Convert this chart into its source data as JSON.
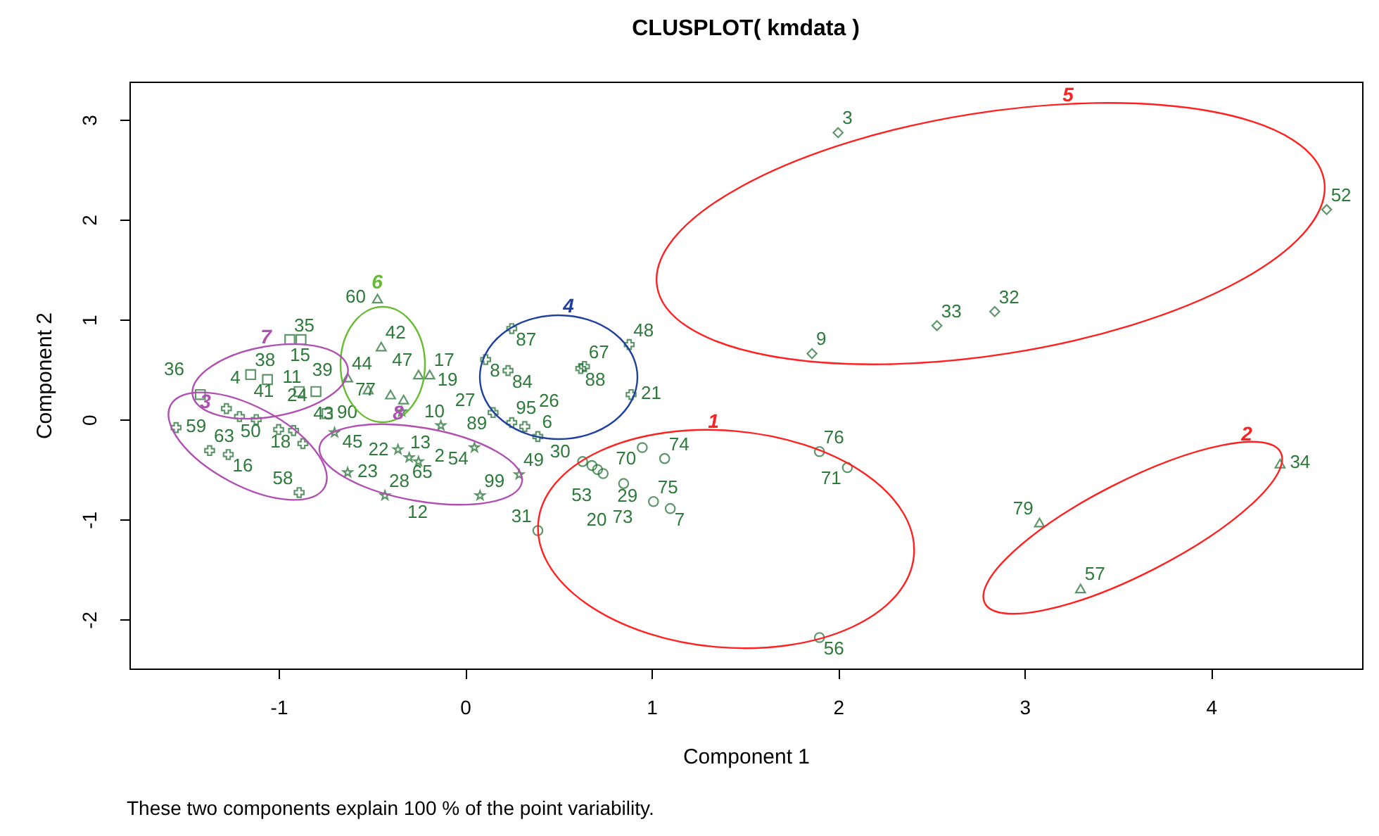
{
  "chart_data": {
    "type": "scatter",
    "title": "CLUSPLOT( kmdata )",
    "xlabel": "Component 1",
    "ylabel": "Component 2",
    "xlim": [
      -1.8,
      4.81
    ],
    "ylim": [
      -2.49,
      3.38
    ],
    "xticks": [
      -1,
      0,
      1,
      2,
      3,
      4
    ],
    "yticks": [
      -2,
      -1,
      0,
      1,
      2,
      3
    ],
    "grid": false,
    "annotations": [
      "These two components explain 100 % of the point variability.",
      "1",
      "2",
      "3",
      "4",
      "5",
      "6",
      "7",
      "8",
      {
        "text": "70",
        "x": 0.95,
        "y": -0.28
      },
      {
        "text": "74",
        "x": 1.07,
        "y": -0.39
      },
      {
        "text": "76",
        "x": 1.9,
        "y": -0.32
      },
      {
        "text": "71",
        "x": 2.05,
        "y": -0.48
      },
      {
        "text": "53",
        "x": 0.63,
        "y": -0.42
      },
      {
        "text": "30",
        "x": 0.68,
        "y": -0.46
      },
      {
        "text": "20",
        "x": 0.71,
        "y": -0.5
      },
      {
        "text": "29",
        "x": 0.74,
        "y": -0.54
      },
      {
        "text": "73",
        "x": 0.85,
        "y": -0.64
      },
      {
        "text": "75",
        "x": 1.01,
        "y": -0.82
      },
      {
        "text": "7",
        "x": 1.1,
        "y": -0.89
      },
      {
        "text": "31",
        "x": 0.39,
        "y": -1.11
      },
      {
        "text": "56",
        "x": 1.9,
        "y": -2.18
      },
      {
        "text": "34",
        "x": 4.37,
        "y": -0.44
      },
      {
        "text": "79",
        "x": 3.08,
        "y": -1.03
      },
      {
        "text": "57",
        "x": 3.3,
        "y": -1.69
      },
      {
        "text": "59",
        "x": -1.55,
        "y": -0.08
      },
      {
        "text": "63",
        "x": -1.37,
        "y": -0.31
      },
      {
        "text": "16",
        "x": -1.27,
        "y": -0.35
      },
      {
        "text": "58",
        "x": -0.89,
        "y": -0.73
      },
      {
        "text": "50",
        "x": -1.28,
        "y": 0.11
      },
      {
        "text": "41",
        "x": -1.21,
        "y": 0.03
      },
      {
        "text": "18",
        "x": -1.12,
        "y": 0.0
      },
      {
        "text": "24",
        "x": -1.0,
        "y": -0.1
      },
      {
        "text": "11",
        "x": -0.92,
        "y": -0.11
      },
      {
        "text": "45",
        "x": -0.87,
        "y": -0.24
      },
      {
        "text": "87",
        "x": 0.25,
        "y": 0.91
      },
      {
        "text": "8",
        "x": 0.11,
        "y": 0.6
      },
      {
        "text": "84",
        "x": 0.23,
        "y": 0.49
      },
      {
        "text": "88",
        "x": 0.62,
        "y": 0.51
      },
      {
        "text": "67",
        "x": 0.64,
        "y": 0.53
      },
      {
        "text": "48",
        "x": 0.88,
        "y": 0.75
      },
      {
        "text": "21",
        "x": 0.89,
        "y": 0.25
      },
      {
        "text": "89",
        "x": 0.15,
        "y": 0.07
      },
      {
        "text": "95",
        "x": 0.25,
        "y": -0.03
      },
      {
        "text": "26",
        "x": 0.32,
        "y": -0.07
      },
      {
        "text": "6",
        "x": 0.39,
        "y": -0.17
      },
      {
        "text": "3",
        "x": 2.0,
        "y": 2.87
      },
      {
        "text": "52",
        "x": 4.62,
        "y": 2.1
      },
      {
        "text": "33",
        "x": 2.53,
        "y": 0.94
      },
      {
        "text": "32",
        "x": 2.84,
        "y": 1.08
      },
      {
        "text": "9",
        "x": 1.86,
        "y": 0.66
      },
      {
        "text": "60",
        "x": -0.47,
        "y": 1.21
      },
      {
        "text": "42",
        "x": -0.45,
        "y": 0.73
      },
      {
        "text": "47",
        "x": -0.25,
        "y": 0.45
      },
      {
        "text": "17",
        "x": -0.19,
        "y": 0.45
      },
      {
        "text": "44",
        "x": -0.63,
        "y": 0.42
      },
      {
        "text": "39",
        "x": -0.52,
        "y": 0.3
      },
      {
        "text": "10",
        "x": -0.4,
        "y": 0.25
      },
      {
        "text": "19",
        "x": -0.33,
        "y": 0.2
      },
      {
        "text": "35",
        "x": -0.94,
        "y": 0.8
      },
      {
        "text": "15",
        "x": -0.88,
        "y": 0.8
      },
      {
        "text": "38",
        "x": -1.15,
        "y": 0.45
      },
      {
        "text": "4",
        "x": -1.06,
        "y": 0.4
      },
      {
        "text": "36",
        "x": -1.42,
        "y": 0.25
      },
      {
        "text": "43",
        "x": -0.89,
        "y": 0.28
      },
      {
        "text": "77",
        "x": -0.8,
        "y": 0.28
      },
      {
        "text": "90",
        "x": -0.74,
        "y": 0.06
      },
      {
        "text": "13",
        "x": -0.34,
        "y": 0.08
      },
      {
        "text": "27",
        "x": -0.13,
        "y": -0.06
      },
      {
        "text": "22",
        "x": -0.7,
        "y": -0.13
      },
      {
        "text": "23",
        "x": -0.63,
        "y": -0.53
      },
      {
        "text": "28",
        "x": -0.43,
        "y": -0.76
      },
      {
        "text": "54",
        "x": 0.05,
        "y": -0.28
      },
      {
        "text": "49",
        "x": 0.29,
        "y": -0.55
      },
      {
        "text": "99",
        "x": 0.08,
        "y": -0.76
      },
      {
        "text": "65",
        "x": -0.36,
        "y": -0.3
      },
      {
        "text": "12",
        "x": -0.25,
        "y": -0.42
      },
      {
        "text": "2",
        "x": -0.3,
        "y": -0.38
      }
    ],
    "series": [
      {
        "type": "scatter",
        "marker": "circle",
        "color": "#1a6b2a",
        "x": [
          0.95,
          1.07,
          1.9,
          2.05,
          0.63,
          0.68,
          0.71,
          0.74,
          0.85,
          1.01,
          1.1,
          0.39,
          1.9
        ],
        "values": [
          -0.28,
          -0.39,
          -0.32,
          -0.48,
          -0.42,
          -0.46,
          -0.5,
          -0.54,
          -0.64,
          -0.82,
          -0.89,
          -1.11,
          -2.18
        ]
      },
      {
        "type": "scatter",
        "marker": "triangle",
        "color": "#1a6b2a",
        "x": [
          4.37,
          3.08,
          3.3
        ],
        "values": [
          -0.44,
          -1.03,
          -1.69
        ]
      },
      {
        "type": "scatter",
        "marker": "cross",
        "color": "#1a6b2a",
        "x": [
          -1.55,
          -1.37,
          -1.27,
          -0.89,
          -1.28,
          -1.21,
          -1.12,
          -1.0,
          -0.92,
          -0.87
        ],
        "values": [
          -0.08,
          -0.31,
          -0.35,
          -0.73,
          0.11,
          0.03,
          0.0,
          -0.1,
          -0.11,
          -0.24
        ]
      },
      {
        "type": "scatter",
        "marker": "cross",
        "color": "#1a6b2a",
        "x": [
          0.25,
          0.11,
          0.23,
          0.62,
          0.64,
          0.88,
          0.89,
          0.15,
          0.25,
          0.32,
          0.39
        ],
        "values": [
          0.91,
          0.6,
          0.49,
          0.51,
          0.53,
          0.75,
          0.25,
          0.07,
          -0.03,
          -0.07,
          -0.17
        ]
      },
      {
        "type": "scatter",
        "marker": "diamond",
        "color": "#1a6b2a",
        "x": [
          2.0,
          4.62,
          2.53,
          2.84,
          1.86
        ],
        "values": [
          2.87,
          2.1,
          0.94,
          1.08,
          0.66
        ]
      },
      {
        "type": "scatter",
        "marker": "triangle",
        "color": "#1a6b2a",
        "x": [
          -0.47,
          -0.45,
          -0.25,
          -0.19,
          -0.63,
          -0.52,
          -0.4,
          -0.33
        ],
        "values": [
          1.21,
          0.73,
          0.45,
          0.45,
          0.42,
          0.3,
          0.25,
          0.2
        ]
      },
      {
        "type": "scatter",
        "marker": "square",
        "color": "#1a6b2a",
        "x": [
          -0.94,
          -0.88,
          -1.15,
          -1.06,
          -1.42,
          -0.89,
          -0.8,
          -0.74
        ],
        "values": [
          0.8,
          0.8,
          0.45,
          0.4,
          0.25,
          0.28,
          0.28,
          0.06
        ]
      },
      {
        "type": "scatter",
        "marker": "star",
        "color": "#1a6b2a",
        "x": [
          -0.34,
          -0.13,
          -0.7,
          -0.63,
          -0.43,
          0.05,
          0.29,
          0.08,
          -0.36,
          -0.25,
          -0.3
        ],
        "values": [
          0.08,
          -0.06,
          -0.13,
          -0.53,
          -0.76,
          -0.28,
          -0.55,
          -0.76,
          -0.3,
          -0.42,
          -0.38
        ]
      }
    ]
  }
}
